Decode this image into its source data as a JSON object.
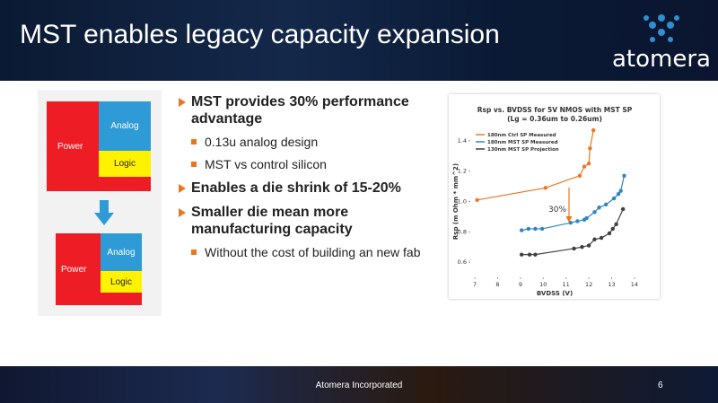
{
  "header": {
    "title": "MST enables legacy capacity expansion",
    "logo": "atomera"
  },
  "diagram": {
    "before": {
      "power": "Power",
      "analog": "Analog",
      "logic": "Logic"
    },
    "after": {
      "power": "Power",
      "analog": "Analog",
      "logic": "Logic"
    }
  },
  "bullets": [
    {
      "text": "MST provides 30% performance advantage",
      "sub": [
        "0.13u analog design",
        "MST vs control silicon"
      ]
    },
    {
      "text": "Enables a die shrink of 15-20%"
    },
    {
      "text": "Smaller die mean more manufacturing capacity",
      "sub": [
        "Without the cost of building an new fab"
      ]
    }
  ],
  "chart_data": {
    "type": "line",
    "title": "Rsp vs. BVDSS for 5V NMOS with MST SP",
    "subtitle": "(Lg = 0.36um to 0.26um)",
    "x_label": "BVDSS (V)",
    "y_label": "Rsp (m Ohm * mm^2)",
    "xlim": [
      6.8,
      14.2
    ],
    "ylim": [
      0.5,
      1.5
    ],
    "xticks": [
      7,
      8,
      9,
      10,
      11,
      12,
      13,
      14
    ],
    "yticks": [
      0.6,
      0.8,
      {
        "value": 1,
        "label": "1.0"
      },
      1.2,
      1.4
    ],
    "grid": false,
    "legend": "top-left",
    "annotation": "30%",
    "series": [
      {
        "name": "180nm Ctrl SP Measured",
        "color": "#e87722",
        "x": [
          7.1,
          10.1,
          11.6,
          11.8,
          12.0,
          12.05,
          12.2
        ],
        "values": [
          1.01,
          1.09,
          1.17,
          1.23,
          1.25,
          1.35,
          1.47
        ]
      },
      {
        "name": "180nm MST SP Measured",
        "color": "#2e86c1",
        "x": [
          9.05,
          9.35,
          9.65,
          9.95,
          11.2,
          11.5,
          11.8,
          11.9,
          12.25,
          12.45,
          12.75,
          13.1,
          13.3,
          13.4,
          13.55
        ],
        "values": [
          0.81,
          0.82,
          0.82,
          0.82,
          0.86,
          0.87,
          0.88,
          0.89,
          0.93,
          0.96,
          0.98,
          1.02,
          1.05,
          1.07,
          1.17
        ]
      },
      {
        "name": "130nm MST SP Projection",
        "color": "#404040",
        "x": [
          9.05,
          9.4,
          9.65,
          11.35,
          11.7,
          12.0,
          12.25,
          12.55,
          12.9,
          13.05,
          13.2,
          13.5
        ],
        "values": [
          0.65,
          0.65,
          0.65,
          0.69,
          0.7,
          0.71,
          0.75,
          0.76,
          0.79,
          0.82,
          0.85,
          0.95
        ]
      }
    ]
  },
  "footer": {
    "company": "Atomera Incorporated",
    "page": 6
  }
}
